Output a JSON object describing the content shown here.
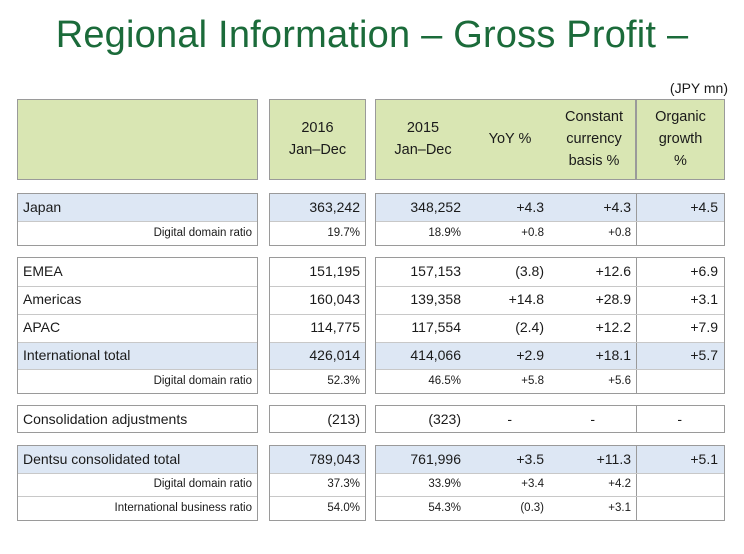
{
  "title": "Regional Information – Gross Profit –",
  "unit": "(JPY mn)",
  "headers": {
    "c2016": [
      "2016",
      "Jan–Dec"
    ],
    "c2015": [
      "2015",
      "Jan–Dec"
    ],
    "yoy": "YoY %",
    "constant": [
      "Constant",
      "currency",
      "basis %"
    ],
    "organic": [
      "Organic",
      "growth",
      "%"
    ]
  },
  "groups": [
    {
      "rows": [
        {
          "label": "Japan",
          "type": "main",
          "v2016": "363,242",
          "v2015": "348,252",
          "yoy": "+4.3",
          "cc": "+4.3",
          "org": "+4.5"
        },
        {
          "label": "Digital domain ratio",
          "type": "sub",
          "v2016": "19.7%",
          "v2015": "18.9%",
          "yoy": "+0.8",
          "cc": "+0.8",
          "org": ""
        }
      ]
    },
    {
      "rows": [
        {
          "label": "EMEA",
          "type": "main",
          "v2016": "151,195",
          "v2015": "157,153",
          "yoy": "(3.8)",
          "cc": "+12.6",
          "org": "+6.9"
        },
        {
          "label": "Americas",
          "type": "main",
          "v2016": "160,043",
          "v2015": "139,358",
          "yoy": "+14.8",
          "cc": "+28.9",
          "org": "+3.1"
        },
        {
          "label": "APAC",
          "type": "main",
          "v2016": "114,775",
          "v2015": "117,554",
          "yoy": "(2.4)",
          "cc": "+12.2",
          "org": "+7.9"
        },
        {
          "label": "International total",
          "type": "main",
          "v2016": "426,014",
          "v2015": "414,066",
          "yoy": "+2.9",
          "cc": "+18.1",
          "org": "+5.7"
        },
        {
          "label": "Digital domain ratio",
          "type": "sub",
          "v2016": "52.3%",
          "v2015": "46.5%",
          "yoy": "+5.8",
          "cc": "+5.6",
          "org": ""
        }
      ]
    },
    {
      "rows": [
        {
          "label": "Consolidation adjustments",
          "type": "main",
          "v2016": "(213)",
          "v2015": "(323)",
          "yoy": "-",
          "cc": "-",
          "org": "-"
        }
      ]
    },
    {
      "rows": [
        {
          "label": "Dentsu consolidated total",
          "type": "main",
          "v2016": "789,043",
          "v2015": "761,996",
          "yoy": "+3.5",
          "cc": "+11.3",
          "org": "+5.1"
        },
        {
          "label": "Digital domain ratio",
          "type": "sub",
          "v2016": "37.3%",
          "v2015": "33.9%",
          "yoy": "+3.4",
          "cc": "+4.2",
          "org": ""
        },
        {
          "label": "International business ratio",
          "type": "sub",
          "v2016": "54.0%",
          "v2015": "54.3%",
          "yoy": "(0.3)",
          "cc": "+3.1",
          "org": ""
        }
      ]
    }
  ],
  "colors": {
    "title": "#1b6b3a",
    "header_bg": "#d9e6b3",
    "highlight_bg": "#dde7f4",
    "border": "#9a9a9a"
  }
}
